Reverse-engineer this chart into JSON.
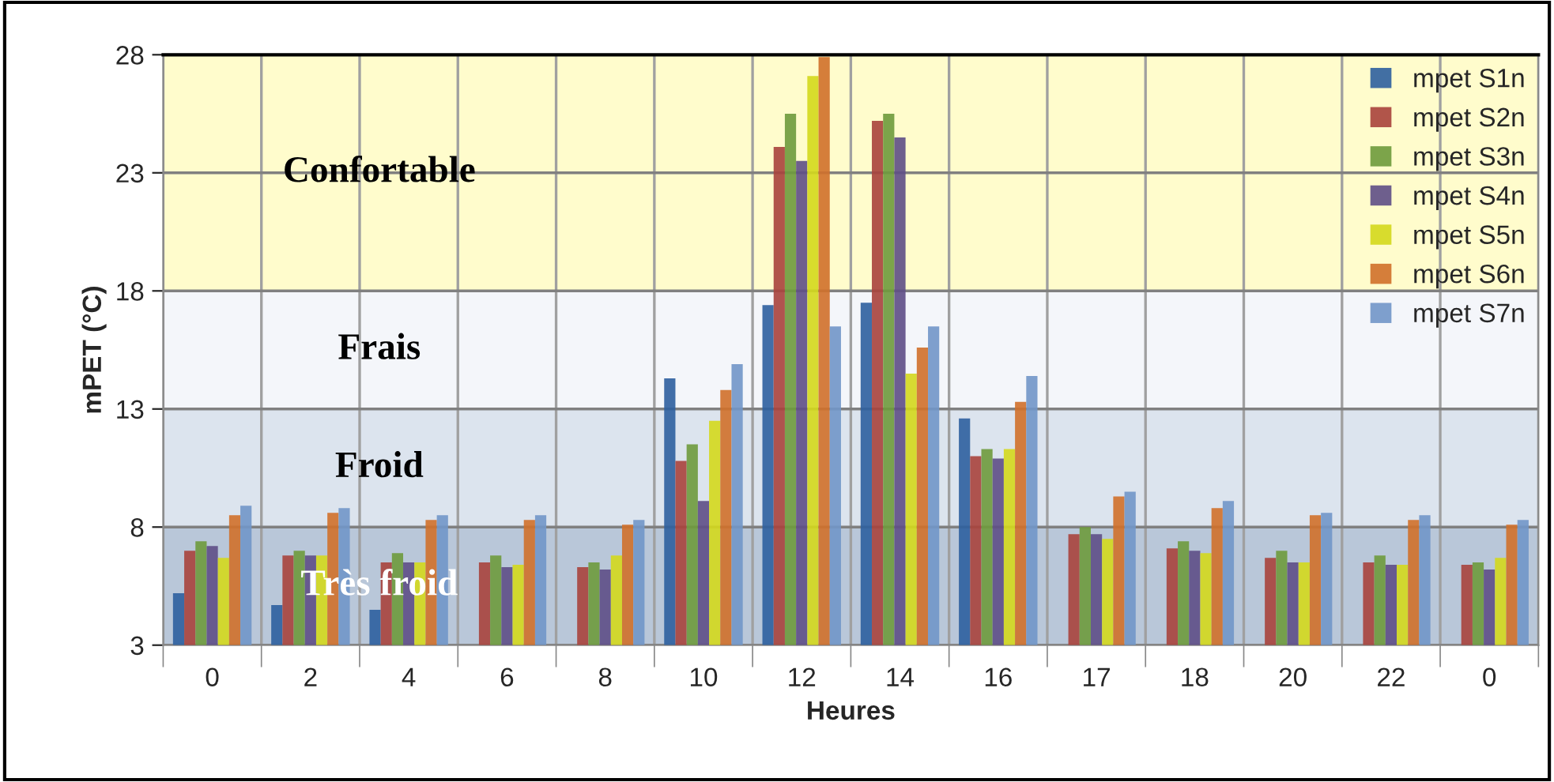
{
  "chart_data": {
    "type": "bar",
    "xlabel": "Heures",
    "ylabel": "mPET (°C)",
    "categories": [
      "0",
      "2",
      "4",
      "6",
      "8",
      "10",
      "12",
      "14",
      "16",
      "17",
      "18",
      "20",
      "22",
      "0"
    ],
    "series": [
      {
        "name": "mpet S1n",
        "color": "#2e5f9e",
        "values": [
          5.2,
          4.7,
          4.5,
          3,
          3,
          14.3,
          17.4,
          17.5,
          12.6,
          3,
          3,
          3,
          3,
          3
        ]
      },
      {
        "name": "mpet S2n",
        "color": "#a8433c",
        "values": [
          7.0,
          6.8,
          6.5,
          6.5,
          6.3,
          10.8,
          24.1,
          25.2,
          11.0,
          7.7,
          7.1,
          6.7,
          6.5,
          6.4
        ]
      },
      {
        "name": "mpet S3n",
        "color": "#6e9a3c",
        "values": [
          7.4,
          7.0,
          6.9,
          6.8,
          6.5,
          11.5,
          25.5,
          25.5,
          11.3,
          8.0,
          7.4,
          7.0,
          6.8,
          6.5
        ]
      },
      {
        "name": "mpet S4n",
        "color": "#5e4e86",
        "values": [
          7.2,
          6.8,
          6.5,
          6.3,
          6.2,
          9.1,
          23.5,
          24.5,
          10.9,
          7.7,
          7.0,
          6.5,
          6.4,
          6.2
        ]
      },
      {
        "name": "mpet S5n",
        "color": "#d4d81c",
        "values": [
          6.7,
          6.8,
          6.5,
          6.4,
          6.8,
          12.5,
          27.1,
          14.5,
          11.3,
          7.5,
          6.9,
          6.5,
          6.4,
          6.7
        ]
      },
      {
        "name": "mpet S6n",
        "color": "#d0702a",
        "values": [
          8.5,
          8.6,
          8.3,
          8.3,
          8.1,
          13.8,
          27.9,
          15.6,
          13.3,
          9.3,
          8.8,
          8.5,
          8.3,
          8.1
        ]
      },
      {
        "name": "mpet S7n",
        "color": "#7196c8",
        "values": [
          8.9,
          8.8,
          8.5,
          8.5,
          8.3,
          14.9,
          16.5,
          16.5,
          14.4,
          9.5,
          9.1,
          8.6,
          8.5,
          8.3
        ]
      }
    ],
    "ylim": [
      3,
      28
    ],
    "yticks": [
      3,
      8,
      13,
      18,
      23,
      28
    ],
    "bands": [
      {
        "axis": "y",
        "from": 18,
        "to": 28,
        "label": "Confortable",
        "color": "#fffccc"
      },
      {
        "axis": "y",
        "from": 13,
        "to": 18,
        "label": "Frais",
        "color": "#f4f6fa"
      },
      {
        "axis": "y",
        "from": 8,
        "to": 13,
        "label": "Froid",
        "color": "#dce4ee"
      },
      {
        "axis": "y",
        "from": 3,
        "to": 8,
        "label": "Très froid",
        "color": "#b9c7d9"
      }
    ],
    "grid": true,
    "legend": "top right"
  }
}
